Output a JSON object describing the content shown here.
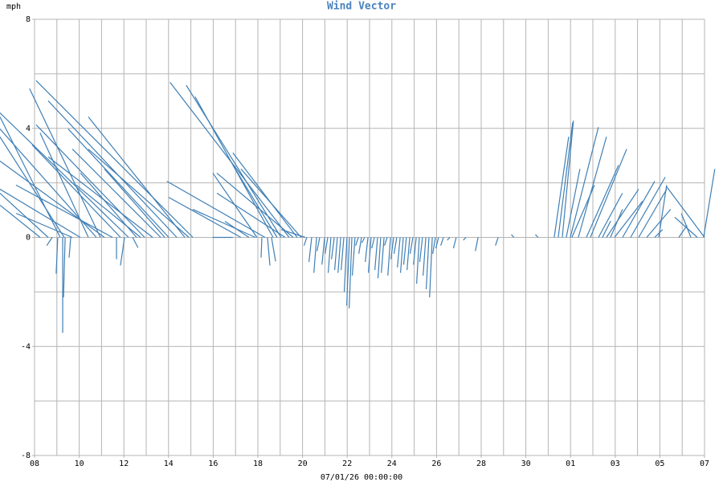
{
  "chart_data": {
    "type": "vector",
    "title": "Wind Vector",
    "y_label": "mph",
    "x_label": "07/01/26 00:00:00",
    "color": "#3f7fb5",
    "grid": true,
    "xlim": [
      0,
      30
    ],
    "ylim": [
      -8,
      8
    ],
    "yticks": [
      -8,
      -4,
      0,
      4,
      8
    ],
    "y_grid": [
      -8,
      -6,
      -4,
      -2,
      0,
      2,
      4,
      6,
      8
    ],
    "x_grid": [
      0,
      1,
      2,
      3,
      4,
      5,
      6,
      7,
      8,
      9,
      10,
      11,
      12,
      13,
      14,
      15,
      16,
      17,
      18,
      19,
      20,
      21,
      22,
      23,
      24,
      25,
      26,
      27,
      28,
      29,
      30
    ],
    "xticks": [
      {
        "value": 0,
        "label": "08"
      },
      {
        "value": 2,
        "label": "10"
      },
      {
        "value": 4,
        "label": "12"
      },
      {
        "value": 6,
        "label": "14"
      },
      {
        "value": 8,
        "label": "16"
      },
      {
        "value": 10,
        "label": "18"
      },
      {
        "value": 12,
        "label": "20"
      },
      {
        "value": 14,
        "label": "22"
      },
      {
        "value": 16,
        "label": "24"
      },
      {
        "value": 18,
        "label": "26"
      },
      {
        "value": 20,
        "label": "28"
      },
      {
        "value": 22,
        "label": "30"
      },
      {
        "value": 24,
        "label": "01"
      },
      {
        "value": 26,
        "label": "03"
      },
      {
        "value": 28,
        "label": "05"
      },
      {
        "value": 30,
        "label": "07"
      }
    ],
    "x": [
      7.09,
      6.73,
      6.37,
      5.65,
      4.93,
      4.57,
      4.21,
      3.85,
      3.49,
      3.13,
      2.77,
      2.41,
      2.05,
      1.69,
      1.33,
      1.15,
      0.61,
      0.25,
      6.91,
      6.01,
      5.29,
      5.83,
      4.75,
      2.95,
      1.26,
      1.37,
      1.04,
      0.79,
      3.67,
      4.03,
      1.62,
      4.39,
      11.4,
      11.04,
      10.68,
      10.32,
      9.96,
      11.76,
      11.94,
      11.58,
      10.86,
      9.89,
      9.24,
      8.88,
      10.43,
      10.61,
      10.18,
      12.12,
      11.22,
      9.6,
      12.19,
      12.41,
      12.63,
      12.77,
      12.99,
      13.13,
      13.27,
      13.42,
      13.56,
      13.71,
      13.85,
      13.99,
      14.1,
      14.21,
      14.35,
      14.5,
      14.64,
      14.78,
      14.93,
      15.07,
      15.22,
      15.36,
      15.5,
      15.65,
      15.79,
      15.94,
      16.08,
      16.22,
      16.37,
      16.51,
      16.65,
      16.8,
      16.94,
      17.09,
      17.23,
      17.37,
      17.52,
      17.66,
      17.81,
      17.95,
      18.09,
      18.31,
      18.6,
      18.88,
      19.32,
      19.86,
      20.76,
      21.47,
      22.55,
      23.63,
      23.27,
      23.45,
      23.81,
      23.99,
      24.35,
      24.71,
      24.89,
      25.25,
      25.61,
      25.97,
      26.33,
      26.69,
      27.05,
      27.41,
      27.95,
      30.0,
      29.96,
      29.39,
      29.68,
      24.06,
      25.79,
      27.77,
      25.43,
      28.85
    ],
    "u": [
      -5.75,
      -3.54,
      -4.72,
      -3.24,
      -3.98,
      -2.06,
      -4.72,
      -3.24,
      -3.54,
      -3.83,
      -3.54,
      -1.77,
      -2.95,
      -2.06,
      -2.36,
      -2.21,
      -1.77,
      -1.47,
      -3.69,
      -3.69,
      -3.83,
      -2.21,
      -2.36,
      -2.6,
      0,
      -0.06,
      -0.06,
      -0.2,
      0,
      -0.15,
      -0.06,
      0.2,
      -4.37,
      -3.48,
      -2.86,
      -3.6,
      -1.62,
      -2.36,
      -2.21,
      -2.8,
      -1.62,
      -2.3,
      -2.65,
      -0.74,
      0.09,
      0.15,
      -0.03,
      -0.88,
      -2.5,
      -0.88,
      -0.1,
      -0.1,
      -0.1,
      -0.1,
      -0.1,
      -0.1,
      -0.1,
      -0.1,
      -0.1,
      -0.1,
      -0.1,
      -0.1,
      -0.1,
      -0.1,
      -0.1,
      -0.1,
      -0.1,
      -0.1,
      -0.1,
      -0.1,
      -0.1,
      -0.1,
      -0.1,
      -0.1,
      -0.1,
      -0.1,
      -0.1,
      -0.1,
      -0.1,
      -0.1,
      -0.1,
      -0.1,
      -0.1,
      -0.1,
      -0.1,
      -0.1,
      -0.1,
      -0.1,
      -0.1,
      -0.1,
      -0.1,
      -0.1,
      -0.1,
      -0.1,
      -0.1,
      -0.1,
      -0.1,
      -0.1,
      -0.1,
      0.41,
      0.53,
      0.53,
      0.5,
      1.03,
      1.03,
      1.18,
      1.33,
      0.88,
      1.18,
      1.03,
      1.18,
      1.27,
      1.03,
      0.88,
      0.29,
      -1.39,
      0.41,
      -0.35,
      -0.83,
      0.83,
      0.44,
      0.29,
      0.3,
      0.3
    ],
    "values": [
      5.75,
      4.42,
      5.01,
      3.24,
      4.13,
      2.36,
      4.57,
      3.39,
      1.92,
      2.8,
      3.98,
      3.83,
      1.77,
      0.88,
      3.69,
      4.42,
      1.62,
      1.18,
      3.24,
      3.98,
      2.95,
      2.51,
      1.92,
      5.46,
      -3.5,
      -2.2,
      -1.33,
      -0.3,
      -0.8,
      -1.03,
      -0.74,
      -0.38,
      5.69,
      5.58,
      5.16,
      2.06,
      2.36,
      3.1,
      2.51,
      2.36,
      2.65,
      1.03,
      1.47,
      0,
      -1.03,
      -0.88,
      -0.74,
      0.29,
      1.62,
      0.59,
      -0.3,
      -0.9,
      -1.3,
      -0.5,
      -1.0,
      -0.6,
      -1.3,
      -0.8,
      -1.2,
      -1.3,
      -1.2,
      -2.0,
      -2.5,
      -2.6,
      -1.4,
      -0.3,
      -0.6,
      -0.2,
      -0.9,
      -1.3,
      -0.4,
      -1.2,
      -1.5,
      -1.3,
      -0.3,
      -1.4,
      -0.8,
      -0.6,
      -1.1,
      -1.3,
      -1.0,
      -1.2,
      -0.6,
      -1.0,
      -1.7,
      -0.9,
      -1.4,
      -1.9,
      -2.2,
      -0.6,
      -0.4,
      -0.3,
      -0.1,
      -0.4,
      -0.1,
      -0.5,
      -0.3,
      0.1,
      0.1,
      4.28,
      3.69,
      4.22,
      2.51,
      4.04,
      3.69,
      2.65,
      3.24,
      1.62,
      1.77,
      1.33,
      2.06,
      2.21,
      1.77,
      1.03,
      1.92,
      1.86,
      2.51,
      0.88,
      0.74,
      1.92,
      1.03,
      0.29,
      0.6,
      0.44
    ]
  }
}
